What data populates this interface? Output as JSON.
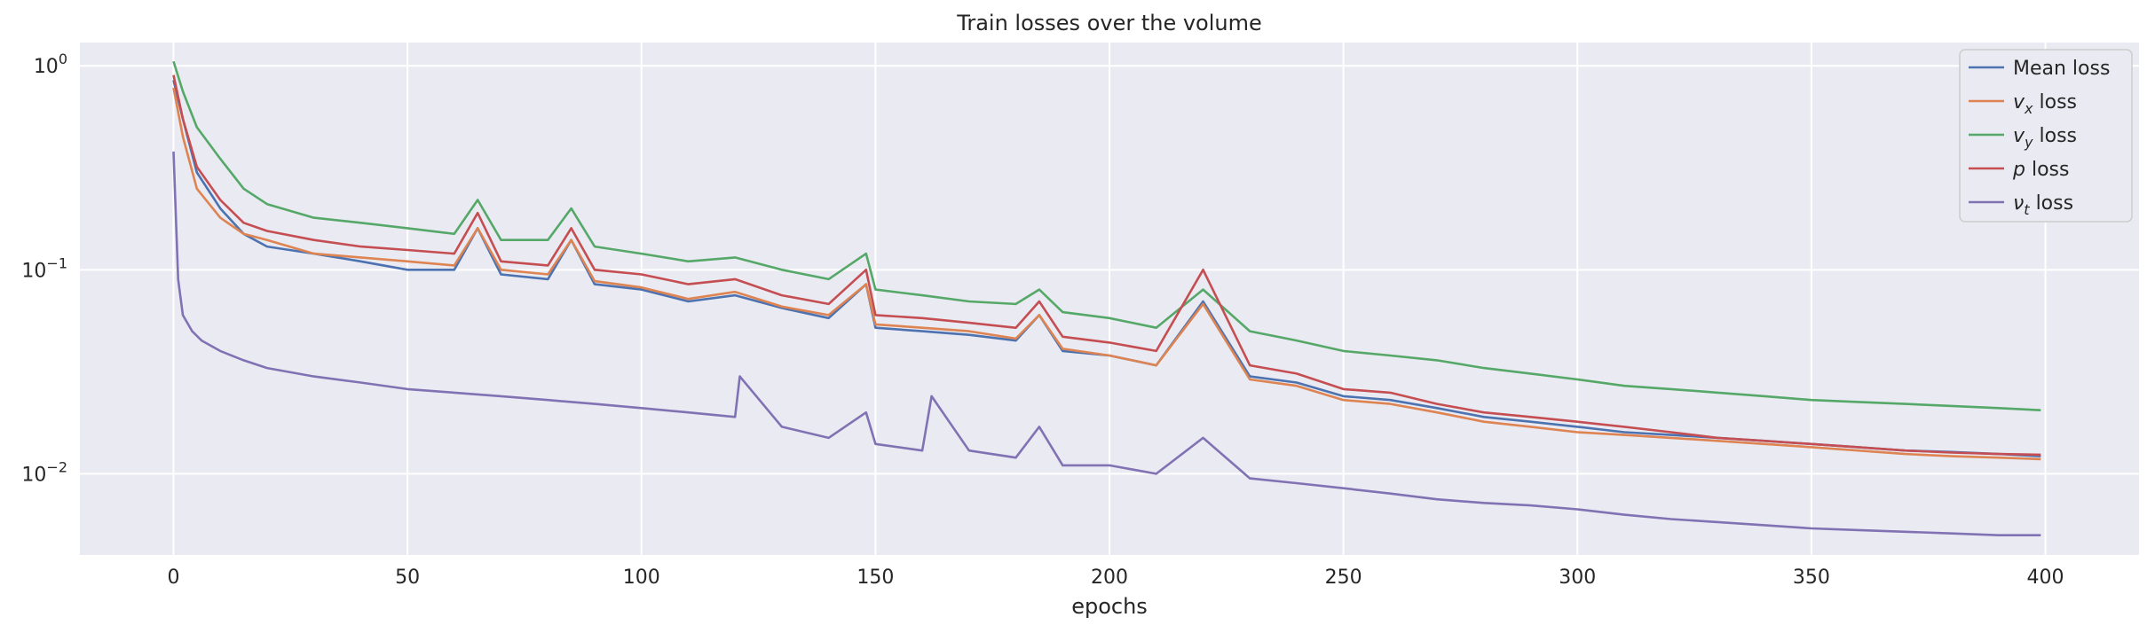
{
  "chart_data": {
    "type": "line",
    "title": "Train losses over the volume",
    "xlabel": "epochs",
    "ylabel": "",
    "xlim": [
      -20,
      420
    ],
    "ylim": [
      0.004,
      1.3
    ],
    "yscale": "log",
    "grid": true,
    "legend_position": "top-right",
    "x_ticks": [
      0,
      50,
      100,
      150,
      200,
      250,
      300,
      350,
      400
    ],
    "x_tick_labels": [
      "0",
      "50",
      "100",
      "150",
      "200",
      "250",
      "300",
      "350",
      "400"
    ],
    "y_ticks": [
      0.01,
      0.1,
      1
    ],
    "y_tick_labels": [
      {
        "base": "10",
        "exp": "−2"
      },
      {
        "base": "10",
        "exp": "−1"
      },
      {
        "base": "10",
        "exp": "0"
      }
    ],
    "series": [
      {
        "name": "Mean loss",
        "legend_math": {
          "symbol": "",
          "sub": "",
          "rest": "Mean loss"
        },
        "color": "#4c72b0",
        "x": [
          0,
          2,
          5,
          10,
          15,
          20,
          30,
          40,
          50,
          60,
          65,
          70,
          80,
          85,
          90,
          100,
          110,
          120,
          130,
          140,
          148,
          150,
          160,
          170,
          180,
          185,
          190,
          200,
          210,
          220,
          230,
          240,
          250,
          260,
          270,
          280,
          290,
          300,
          310,
          320,
          330,
          340,
          350,
          360,
          370,
          380,
          390,
          399
        ],
        "y": [
          0.85,
          0.55,
          0.3,
          0.2,
          0.15,
          0.13,
          0.12,
          0.11,
          0.1,
          0.1,
          0.16,
          0.095,
          0.09,
          0.14,
          0.085,
          0.08,
          0.07,
          0.075,
          0.065,
          0.058,
          0.085,
          0.052,
          0.05,
          0.048,
          0.045,
          0.06,
          0.04,
          0.038,
          0.034,
          0.07,
          0.03,
          0.028,
          0.024,
          0.023,
          0.021,
          0.019,
          0.018,
          0.017,
          0.016,
          0.0155,
          0.015,
          0.0145,
          0.014,
          0.0135,
          0.013,
          0.0128,
          0.0125,
          0.0122
        ]
      },
      {
        "name": "v_x loss",
        "legend_math": {
          "symbol": "v",
          "sub": "x",
          "rest": " loss"
        },
        "color": "#dd8452",
        "x": [
          0,
          2,
          5,
          10,
          15,
          20,
          30,
          40,
          50,
          60,
          65,
          70,
          80,
          85,
          90,
          100,
          110,
          120,
          130,
          140,
          148,
          150,
          160,
          170,
          180,
          185,
          190,
          200,
          210,
          220,
          230,
          240,
          250,
          260,
          270,
          280,
          290,
          300,
          310,
          320,
          330,
          340,
          350,
          360,
          370,
          380,
          390,
          399
        ],
        "y": [
          0.78,
          0.45,
          0.25,
          0.18,
          0.15,
          0.14,
          0.12,
          0.115,
          0.11,
          0.105,
          0.16,
          0.1,
          0.095,
          0.14,
          0.088,
          0.082,
          0.072,
          0.078,
          0.066,
          0.06,
          0.085,
          0.054,
          0.052,
          0.05,
          0.046,
          0.06,
          0.041,
          0.038,
          0.034,
          0.068,
          0.029,
          0.027,
          0.023,
          0.022,
          0.02,
          0.018,
          0.017,
          0.016,
          0.0155,
          0.015,
          0.0145,
          0.014,
          0.0135,
          0.013,
          0.0125,
          0.0122,
          0.012,
          0.0118
        ]
      },
      {
        "name": "v_y loss",
        "legend_math": {
          "symbol": "v",
          "sub": "y",
          "rest": " loss"
        },
        "color": "#55a868",
        "x": [
          0,
          2,
          5,
          10,
          15,
          20,
          30,
          40,
          50,
          60,
          65,
          70,
          80,
          85,
          90,
          100,
          110,
          120,
          130,
          140,
          148,
          150,
          160,
          170,
          180,
          185,
          190,
          200,
          210,
          220,
          230,
          240,
          250,
          260,
          270,
          280,
          290,
          300,
          310,
          320,
          330,
          340,
          350,
          360,
          370,
          380,
          390,
          399
        ],
        "y": [
          1.05,
          0.75,
          0.5,
          0.35,
          0.25,
          0.21,
          0.18,
          0.17,
          0.16,
          0.15,
          0.22,
          0.14,
          0.14,
          0.2,
          0.13,
          0.12,
          0.11,
          0.115,
          0.1,
          0.09,
          0.12,
          0.08,
          0.075,
          0.07,
          0.068,
          0.08,
          0.062,
          0.058,
          0.052,
          0.08,
          0.05,
          0.045,
          0.04,
          0.038,
          0.036,
          0.033,
          0.031,
          0.029,
          0.027,
          0.026,
          0.025,
          0.024,
          0.023,
          0.0225,
          0.022,
          0.0215,
          0.021,
          0.0205
        ]
      },
      {
        "name": "p loss",
        "legend_math": {
          "symbol": "p",
          "sub": "",
          "rest": " loss"
        },
        "color": "#c44e52",
        "x": [
          0,
          2,
          5,
          10,
          15,
          20,
          30,
          40,
          50,
          60,
          65,
          70,
          80,
          85,
          90,
          100,
          110,
          120,
          130,
          140,
          148,
          150,
          160,
          170,
          180,
          185,
          190,
          200,
          210,
          220,
          230,
          240,
          250,
          260,
          270,
          280,
          290,
          300,
          310,
          320,
          330,
          340,
          350,
          360,
          370,
          380,
          390,
          399
        ],
        "y": [
          0.9,
          0.55,
          0.32,
          0.22,
          0.17,
          0.155,
          0.14,
          0.13,
          0.125,
          0.12,
          0.19,
          0.11,
          0.105,
          0.16,
          0.1,
          0.095,
          0.085,
          0.09,
          0.075,
          0.068,
          0.1,
          0.06,
          0.058,
          0.055,
          0.052,
          0.07,
          0.047,
          0.044,
          0.04,
          0.1,
          0.034,
          0.031,
          0.026,
          0.025,
          0.022,
          0.02,
          0.019,
          0.018,
          0.017,
          0.016,
          0.015,
          0.0145,
          0.014,
          0.0135,
          0.013,
          0.0127,
          0.0125,
          0.0124
        ]
      },
      {
        "name": "ν_t loss",
        "legend_math": {
          "symbol": "ν",
          "sub": "t",
          "rest": " loss"
        },
        "color": "#8172b3",
        "x": [
          0,
          1,
          2,
          4,
          6,
          10,
          15,
          20,
          30,
          40,
          50,
          60,
          70,
          80,
          90,
          100,
          110,
          120,
          121,
          130,
          140,
          148,
          150,
          160,
          162,
          170,
          180,
          185,
          190,
          200,
          210,
          220,
          230,
          240,
          250,
          260,
          270,
          280,
          290,
          300,
          310,
          320,
          330,
          340,
          350,
          360,
          370,
          380,
          390,
          399
        ],
        "y": [
          0.38,
          0.09,
          0.06,
          0.05,
          0.045,
          0.04,
          0.036,
          0.033,
          0.03,
          0.028,
          0.026,
          0.025,
          0.024,
          0.023,
          0.022,
          0.021,
          0.02,
          0.019,
          0.03,
          0.017,
          0.015,
          0.02,
          0.014,
          0.013,
          0.024,
          0.013,
          0.012,
          0.017,
          0.011,
          0.011,
          0.01,
          0.015,
          0.0095,
          0.009,
          0.0085,
          0.008,
          0.0075,
          0.0072,
          0.007,
          0.0067,
          0.0063,
          0.006,
          0.0058,
          0.0056,
          0.0054,
          0.0053,
          0.0052,
          0.0051,
          0.005,
          0.005
        ]
      }
    ]
  }
}
